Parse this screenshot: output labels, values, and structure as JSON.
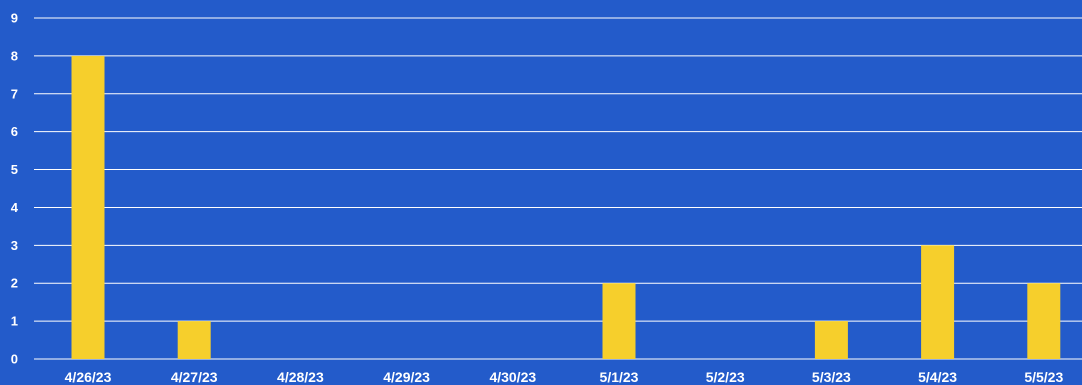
{
  "chart_data": {
    "type": "bar",
    "title": "",
    "xlabel": "",
    "ylabel": "",
    "categories": [
      "4/26/23",
      "4/27/23",
      "4/28/23",
      "4/29/23",
      "4/30/23",
      "5/1/23",
      "5/2/23",
      "5/3/23",
      "5/4/23",
      "5/5/23"
    ],
    "values": [
      8,
      1,
      0,
      0,
      0,
      2,
      0,
      1,
      3,
      2
    ],
    "ylim": [
      0,
      9
    ],
    "yticks": [
      0,
      1,
      2,
      3,
      4,
      5,
      6,
      7,
      8,
      9
    ],
    "grid": true,
    "legend": "none",
    "colors": {
      "background": "#235bca",
      "bar": "#f6cf2c",
      "gridline": "#ffffff",
      "text": "#ffffff"
    }
  }
}
